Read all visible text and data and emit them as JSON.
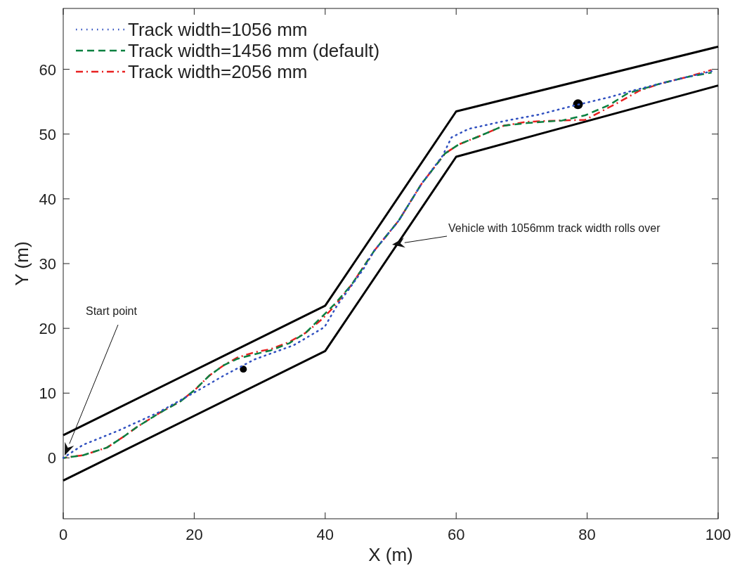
{
  "chart_data": {
    "type": "line",
    "xlabel": "X (m)",
    "ylabel": "Y (m)",
    "xlim": [
      0,
      100
    ],
    "ylim": [
      -9.4,
      69.4
    ],
    "xticks": [
      0,
      20,
      40,
      60,
      80,
      100
    ],
    "yticks": [
      0,
      10,
      20,
      30,
      40,
      50,
      60
    ],
    "grid": false,
    "legend": "top left",
    "series": [
      {
        "name": "Track width=1056 mm",
        "color": "#3050c0",
        "line_style": "dotted",
        "x": [
          0,
          3,
          8.4,
          14.5,
          20.9,
          24.5,
          29.2,
          35.2,
          39.9,
          41.8,
          45.8,
          47.5,
          51.2,
          54.7,
          57.9,
          59.3,
          61.9,
          67.3,
          72.6,
          77.6,
          83.4,
          86.9,
          91.2,
          95.2,
          99
        ],
        "values": [
          0,
          2,
          4.2,
          7,
          10.6,
          12.7,
          15.2,
          17.4,
          20.2,
          23.5,
          29.1,
          32,
          36.6,
          42.3,
          46.6,
          49.5,
          50.8,
          52,
          53,
          54.3,
          55.7,
          56.7,
          57.8,
          58.8,
          59.7
        ]
      },
      {
        "name": "Track width=1456 mm (default)",
        "color": "#0a8040",
        "line_style": "dashed",
        "x": [
          0,
          3,
          6.7,
          9.1,
          11.3,
          14.8,
          18,
          20.2,
          22.3,
          24.5,
          26.6,
          29.2,
          31.7,
          34.5,
          37,
          39.5,
          41.3,
          44,
          47.5,
          51.2,
          54.7,
          58.3,
          60.4,
          63.6,
          67.3,
          70.8,
          76.2,
          79.7,
          83.4,
          86.2,
          91.2,
          95.2,
          99
        ],
        "values": [
          0,
          0.4,
          1.6,
          3.2,
          4.8,
          7,
          8.8,
          10.6,
          12.7,
          14.3,
          15.3,
          16,
          16.6,
          17.7,
          19.3,
          21.8,
          23.6,
          26.7,
          32,
          36.6,
          42.3,
          47,
          48.4,
          49.7,
          51.3,
          51.7,
          52.1,
          52.9,
          54.5,
          56.3,
          57.8,
          58.8,
          59.5
        ]
      },
      {
        "name": "Track width=2056 mm",
        "color": "#e82020",
        "line_style": "dashdot",
        "x": [
          0,
          3,
          6.7,
          9.1,
          11.3,
          14.8,
          18,
          20.2,
          22.3,
          24.5,
          26.6,
          29.2,
          31.7,
          34.5,
          37,
          39.5,
          41.3,
          44,
          47.5,
          51.2,
          54.7,
          58.3,
          60.4,
          63.6,
          67.3,
          70.8,
          76.2,
          79.7,
          84.8,
          88,
          91.2,
          95.2,
          99
        ],
        "values": [
          0,
          0.4,
          1.6,
          3.2,
          4.8,
          7,
          8.8,
          10.6,
          12.7,
          14.3,
          15.5,
          16.3,
          16.8,
          17.9,
          19.3,
          21.4,
          23.3,
          26.7,
          32,
          36.6,
          42.3,
          47,
          48.4,
          49.7,
          51.3,
          51.9,
          52.1,
          52.2,
          54.9,
          56.7,
          57.8,
          58.8,
          59.9
        ]
      },
      {
        "color": "#000000",
        "line_style": "solid",
        "x": [
          0,
          40,
          60,
          100
        ],
        "values": [
          3.5,
          23.5,
          53.5,
          63.5
        ]
      },
      {
        "color": "#000000",
        "line_style": "solid",
        "x": [
          0,
          40,
          60,
          100
        ],
        "values": [
          -3.5,
          16.5,
          46.5,
          57.5
        ]
      },
      {
        "type": "bubble",
        "color": "#000000",
        "marker": "circle",
        "x": [
          27.5,
          78.6
        ],
        "values": [
          13.7,
          54.6
        ],
        "sizes": [
          0.5,
          1
        ]
      }
    ],
    "annotations": [
      "Start point",
      "Vehicle with 1056mm track width rolls over"
    ]
  }
}
